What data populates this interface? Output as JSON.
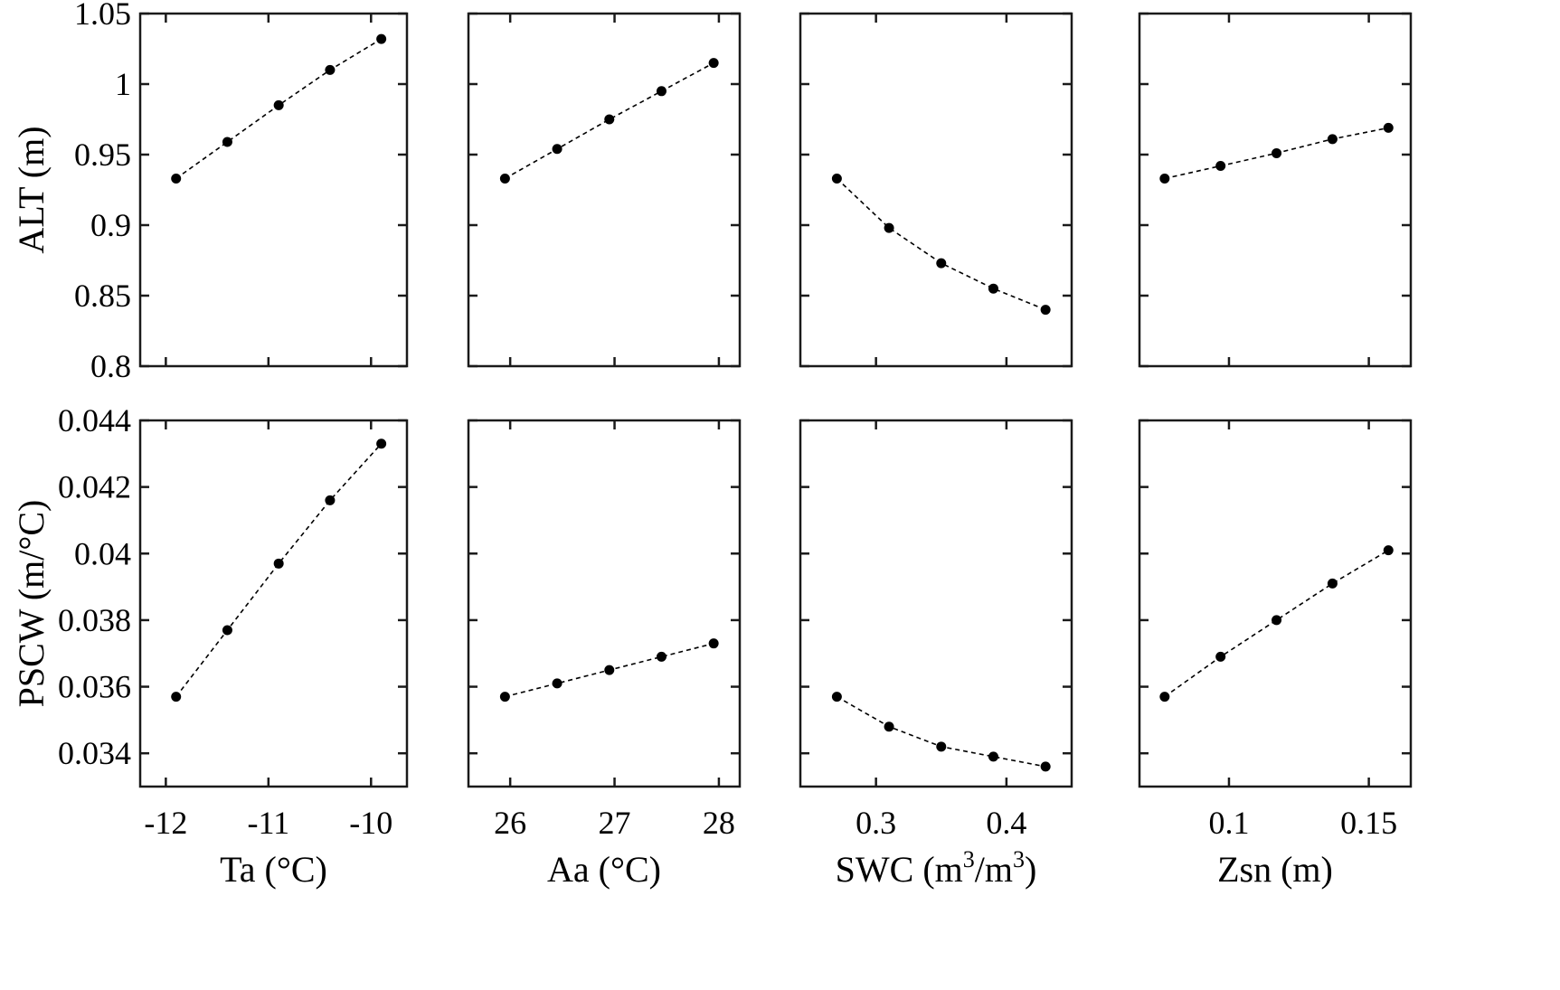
{
  "chart_data": [
    {
      "type": "line",
      "row": 0,
      "col": 0,
      "x": [
        -11.9,
        -11.4,
        -10.9,
        -10.4,
        -9.9
      ],
      "y": [
        0.933,
        0.959,
        0.985,
        1.01,
        1.032
      ],
      "xlim": [
        -12.25,
        -9.65
      ],
      "xticks": [
        -12,
        -11,
        -10
      ],
      "xtick_labels": [
        "-12",
        "-11",
        "-10"
      ],
      "ylim": [
        0.8,
        1.05
      ],
      "yticks": [
        0.8,
        0.85,
        0.9,
        0.95,
        1.0,
        1.05
      ],
      "ytick_labels": [
        "0.8",
        "0.85",
        "0.9",
        "0.95",
        "1",
        "1.05"
      ],
      "ylabel": "ALT (m)",
      "xlabel": ""
    },
    {
      "type": "line",
      "row": 0,
      "col": 1,
      "x": [
        25.95,
        26.45,
        26.95,
        27.45,
        27.95
      ],
      "y": [
        0.933,
        0.954,
        0.975,
        0.995,
        1.015
      ],
      "xlim": [
        25.6,
        28.2
      ],
      "xticks": [
        26,
        27,
        28
      ],
      "xtick_labels": [
        "26",
        "27",
        "28"
      ],
      "ylim": [
        0.8,
        1.05
      ],
      "yticks": [
        0.8,
        0.85,
        0.9,
        0.95,
        1.0,
        1.05
      ],
      "ytick_labels": [],
      "ylabel": "",
      "xlabel": ""
    },
    {
      "type": "line",
      "row": 0,
      "col": 2,
      "x": [
        0.27,
        0.31,
        0.35,
        0.39,
        0.43
      ],
      "y": [
        0.933,
        0.898,
        0.873,
        0.855,
        0.84
      ],
      "xlim": [
        0.242,
        0.45
      ],
      "xticks": [
        0.3,
        0.4
      ],
      "xtick_labels": [
        "0.3",
        "0.4"
      ],
      "ylim": [
        0.8,
        1.05
      ],
      "yticks": [
        0.8,
        0.85,
        0.9,
        0.95,
        1.0,
        1.05
      ],
      "ytick_labels": [],
      "ylabel": "",
      "xlabel": ""
    },
    {
      "type": "line",
      "row": 0,
      "col": 3,
      "x": [
        0.077,
        0.097,
        0.117,
        0.137,
        0.157
      ],
      "y": [
        0.933,
        0.942,
        0.951,
        0.961,
        0.969
      ],
      "xlim": [
        0.068,
        0.165
      ],
      "xticks": [
        0.1,
        0.15
      ],
      "xtick_labels": [
        "0.1",
        "0.15"
      ],
      "ylim": [
        0.8,
        1.05
      ],
      "yticks": [
        0.8,
        0.85,
        0.9,
        0.95,
        1.0,
        1.05
      ],
      "ytick_labels": [],
      "ylabel": "",
      "xlabel": ""
    },
    {
      "type": "line",
      "row": 1,
      "col": 0,
      "x": [
        -11.9,
        -11.4,
        -10.9,
        -10.4,
        -9.9
      ],
      "y": [
        0.0357,
        0.0377,
        0.0397,
        0.0416,
        0.0433
      ],
      "xlim": [
        -12.25,
        -9.65
      ],
      "xticks": [
        -12,
        -11,
        -10
      ],
      "xtick_labels": [
        "-12",
        "-11",
        "-10"
      ],
      "ylim": [
        0.033,
        0.044
      ],
      "yticks": [
        0.034,
        0.036,
        0.038,
        0.04,
        0.042,
        0.044
      ],
      "ytick_labels": [
        "0.034",
        "0.036",
        "0.038",
        "0.04",
        "0.042",
        "0.044"
      ],
      "ylabel": "PSCW (m/°C)",
      "xlabel": "Ta (°C)"
    },
    {
      "type": "line",
      "row": 1,
      "col": 1,
      "x": [
        25.95,
        26.45,
        26.95,
        27.45,
        27.95
      ],
      "y": [
        0.0357,
        0.0361,
        0.0365,
        0.0369,
        0.0373
      ],
      "xlim": [
        25.6,
        28.2
      ],
      "xticks": [
        26,
        27,
        28
      ],
      "xtick_labels": [
        "26",
        "27",
        "28"
      ],
      "ylim": [
        0.033,
        0.044
      ],
      "yticks": [
        0.034,
        0.036,
        0.038,
        0.04,
        0.042,
        0.044
      ],
      "ytick_labels": [],
      "ylabel": "",
      "xlabel": "Aa (°C)"
    },
    {
      "type": "line",
      "row": 1,
      "col": 2,
      "x": [
        0.27,
        0.31,
        0.35,
        0.39,
        0.43
      ],
      "y": [
        0.0357,
        0.0348,
        0.0342,
        0.0339,
        0.0336
      ],
      "xlim": [
        0.242,
        0.45
      ],
      "xticks": [
        0.3,
        0.4
      ],
      "xtick_labels": [
        "0.3",
        "0.4"
      ],
      "ylim": [
        0.033,
        0.044
      ],
      "yticks": [
        0.034,
        0.036,
        0.038,
        0.04,
        0.042,
        0.044
      ],
      "ytick_labels": [],
      "ylabel": "",
      "xlabel": "SWC (m³/m³)",
      "xlabel_parts": [
        "SWC (m",
        "3",
        "/m",
        "3",
        ")"
      ]
    },
    {
      "type": "line",
      "row": 1,
      "col": 3,
      "x": [
        0.077,
        0.097,
        0.117,
        0.137,
        0.157
      ],
      "y": [
        0.0357,
        0.0369,
        0.038,
        0.0391,
        0.0401
      ],
      "xlim": [
        0.068,
        0.165
      ],
      "xticks": [
        0.1,
        0.15
      ],
      "xtick_labels": [
        "0.1",
        "0.15"
      ],
      "ylim": [
        0.033,
        0.044
      ],
      "yticks": [
        0.034,
        0.036,
        0.038,
        0.04,
        0.042,
        0.044
      ],
      "ytick_labels": [],
      "ylabel": "",
      "xlabel": "Zsn (m)"
    }
  ]
}
